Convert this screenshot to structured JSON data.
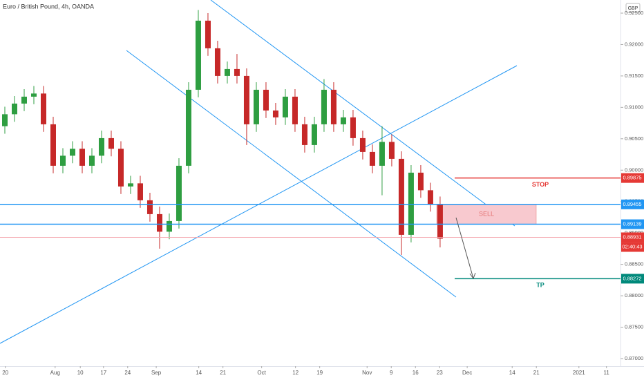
{
  "chart_data": {
    "type": "candlestick",
    "title": "Euro / British Pound, 4h, OANDA",
    "currency": "GBP",
    "up_color": "#2e9e41",
    "down_color": "#c62828",
    "x": [
      1,
      3,
      5,
      7,
      9,
      11,
      13,
      15,
      17,
      19,
      21,
      23,
      25,
      27,
      29,
      31,
      33,
      35,
      37,
      39,
      41,
      43,
      45,
      47,
      49,
      51,
      53,
      55,
      57,
      59,
      61,
      63,
      65,
      67,
      69,
      71,
      73,
      75,
      77,
      79,
      81,
      83,
      85,
      87,
      89,
      91
    ],
    "open": [
      0.907,
      0.9089,
      0.9106,
      0.9117,
      0.9122,
      0.9073,
      0.9007,
      0.9023,
      0.9034,
      0.9007,
      0.9023,
      0.9051,
      0.9034,
      0.8974,
      0.8979,
      0.8952,
      0.893,
      0.8902,
      0.8919,
      0.9007,
      0.9128,
      0.9238,
      0.9194,
      0.915,
      0.9161,
      0.915,
      0.9073,
      0.9128,
      0.9095,
      0.9084,
      0.9117,
      0.9073,
      0.904,
      0.9073,
      0.9128,
      0.9073,
      0.9084,
      0.9051,
      0.9029,
      0.9007,
      0.9045,
      0.9018,
      0.8897,
      0.8996,
      0.8968,
      0.8946
    ],
    "high": [
      0.9101,
      0.9118,
      0.9129,
      0.9134,
      0.9134,
      0.9085,
      0.9035,
      0.9046,
      0.9046,
      0.9035,
      0.9063,
      0.9063,
      0.9046,
      0.8991,
      0.8991,
      0.8964,
      0.8942,
      0.8931,
      0.9019,
      0.914,
      0.9255,
      0.925,
      0.9206,
      0.9173,
      0.9185,
      0.9162,
      0.914,
      0.914,
      0.9107,
      0.9129,
      0.9129,
      0.9085,
      0.9085,
      0.9145,
      0.914,
      0.9096,
      0.9096,
      0.9063,
      0.9041,
      0.907,
      0.9057,
      0.903,
      0.9008,
      0.9008,
      0.898,
      0.8958
    ],
    "low": [
      0.9058,
      0.9077,
      0.9094,
      0.9105,
      0.9061,
      0.8995,
      0.8995,
      0.9011,
      0.8995,
      0.8995,
      0.9011,
      0.9022,
      0.8962,
      0.8962,
      0.894,
      0.8918,
      0.8875,
      0.889,
      0.8907,
      0.8995,
      0.9116,
      0.9182,
      0.9138,
      0.9138,
      0.9138,
      0.904,
      0.9061,
      0.9083,
      0.9072,
      0.9072,
      0.9061,
      0.9028,
      0.9028,
      0.9061,
      0.9061,
      0.9061,
      0.9039,
      0.9017,
      0.8995,
      0.896,
      0.9006,
      0.8865,
      0.8885,
      0.8956,
      0.8934,
      0.8877
    ],
    "close": [
      0.9089,
      0.9106,
      0.9117,
      0.9122,
      0.9073,
      0.9007,
      0.9023,
      0.9034,
      0.9007,
      0.9023,
      0.9051,
      0.9034,
      0.8974,
      0.8979,
      0.8952,
      0.893,
      0.8902,
      0.8919,
      0.9007,
      0.9128,
      0.9238,
      0.9194,
      0.915,
      0.9161,
      0.915,
      0.9073,
      0.9128,
      0.9095,
      0.9084,
      0.9117,
      0.9073,
      0.904,
      0.9073,
      0.9128,
      0.9073,
      0.9084,
      0.9051,
      0.9029,
      0.9007,
      0.9045,
      0.9018,
      0.8897,
      0.8996,
      0.8968,
      0.8946,
      0.8891
    ],
    "xlim": [
      0,
      128.3
    ],
    "xticks": [
      {
        "value": 1.1,
        "label": "20"
      },
      {
        "value": 11.4,
        "label": "Aug"
      },
      {
        "value": 16.6,
        "label": "10"
      },
      {
        "value": 21.4,
        "label": "17"
      },
      {
        "value": 26.4,
        "label": "24"
      },
      {
        "value": 32.3,
        "label": "Sep"
      },
      {
        "value": 41.1,
        "label": "14"
      },
      {
        "value": 46.1,
        "label": "21"
      },
      {
        "value": 54.1,
        "label": "Oct"
      },
      {
        "value": 61.1,
        "label": "12"
      },
      {
        "value": 66.1,
        "label": "19"
      },
      {
        "value": 75.9,
        "label": "Nov"
      },
      {
        "value": 80.9,
        "label": "9"
      },
      {
        "value": 85.9,
        "label": "16"
      },
      {
        "value": 90.9,
        "label": "23"
      },
      {
        "value": 96.6,
        "label": "Dec"
      },
      {
        "value": 105.9,
        "label": "14"
      },
      {
        "value": 110.9,
        "label": "21"
      },
      {
        "value": 119.7,
        "label": "2021"
      },
      {
        "value": 125.4,
        "label": "11"
      }
    ],
    "ylim": [
      0.86879,
      0.92709
    ],
    "yticks": [
      {
        "value": 0.925,
        "label": "0.92500"
      },
      {
        "value": 0.92,
        "label": "0.92000"
      },
      {
        "value": 0.915,
        "label": "0.91500"
      },
      {
        "value": 0.91,
        "label": "0.91000"
      },
      {
        "value": 0.905,
        "label": "0.90500"
      },
      {
        "value": 0.9,
        "label": "0.90000"
      },
      {
        "value": 0.895,
        "label": "0.89500"
      },
      {
        "value": 0.89,
        "label": "0.89000"
      },
      {
        "value": 0.885,
        "label": "0.88500"
      },
      {
        "value": 0.88,
        "label": "0.88000"
      },
      {
        "value": 0.875,
        "label": "0.87500"
      },
      {
        "value": 0.87,
        "label": "0.87000"
      }
    ],
    "levels": [
      {
        "name": "STOP",
        "value": 0.89875,
        "color": "#e53935"
      },
      {
        "value": 0.89455,
        "color": "#2196f3"
      },
      {
        "value": 0.89139,
        "color": "#2196f3"
      },
      {
        "value": 0.88931,
        "color": "#e53935",
        "countdown": "02:40:43"
      },
      {
        "name": "TP",
        "value": 0.88272,
        "color": "#00897b"
      }
    ],
    "zone": {
      "label": "SELL",
      "from": 0.89455,
      "to": 0.89139,
      "color": "#f8c9cf"
    }
  }
}
